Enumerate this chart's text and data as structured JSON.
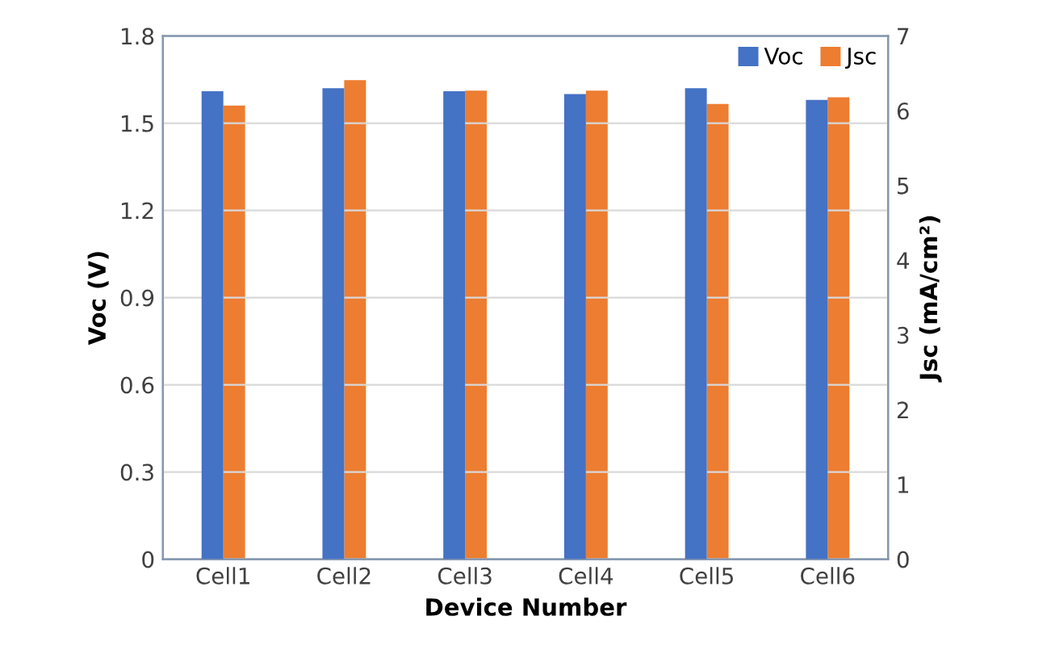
{
  "chart_data": {
    "type": "bar",
    "categories": [
      "Cell1",
      "Cell2",
      "Cell3",
      "Cell4",
      "Cell5",
      "Cell6"
    ],
    "xlabel": "Device Number",
    "ylabel": "Voc (V)",
    "y2label": "Jsc (mA/cm²)",
    "series": [
      {
        "name": "Voc",
        "color": "#4472c4",
        "values": [
          1.61,
          1.62,
          1.61,
          1.6,
          1.62,
          1.58
        ]
      },
      {
        "name": "Jsc",
        "color": "#ed7d31",
        "axis": "y2",
        "values": [
          6.07,
          6.41,
          6.27,
          6.27,
          6.09,
          6.18
        ]
      }
    ],
    "ylim": [
      0,
      1.8
    ],
    "yticks": [
      0,
      0.3,
      0.6,
      0.9,
      1.2,
      1.5,
      1.8
    ],
    "y2lim": [
      0,
      7
    ],
    "y2ticks": [
      0,
      1,
      2,
      3,
      4,
      5,
      6,
      7
    ],
    "grid": "y",
    "legend": "top right"
  }
}
